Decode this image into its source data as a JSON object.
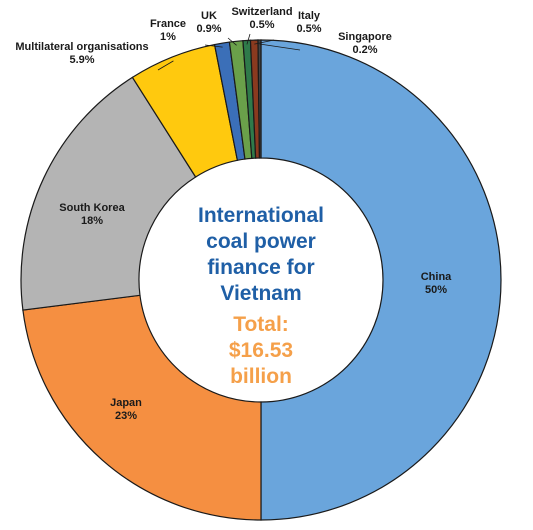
{
  "chart_data": {
    "type": "pie",
    "style": "donut",
    "center_title_lines": [
      "International",
      "coal power",
      "finance for",
      "Vietnam"
    ],
    "center_total_lines": [
      "Total:",
      "$16.53",
      "billion"
    ],
    "slices": [
      {
        "name": "China",
        "value": 50,
        "label": "50%",
        "color": "#6aa5dc"
      },
      {
        "name": "Japan",
        "value": 23,
        "label": "23%",
        "color": "#f58f41"
      },
      {
        "name": "South Korea",
        "value": 18,
        "label": "18%",
        "color": "#b4b4b4"
      },
      {
        "name": "Multilateral organisations",
        "value": 5.9,
        "label": "5.9%",
        "color": "#ffc90e"
      },
      {
        "name": "France",
        "value": 1,
        "label": "1%",
        "color": "#3b6fb8"
      },
      {
        "name": "UK",
        "value": 0.9,
        "label": "0.9%",
        "color": "#6aa04a"
      },
      {
        "name": "Switzerland",
        "value": 0.5,
        "label": "0.5%",
        "color": "#2f7a4a"
      },
      {
        "name": "Italy",
        "value": 0.5,
        "label": "0.5%",
        "color": "#8a3a1f"
      },
      {
        "name": "Singapore",
        "value": 0.2,
        "label": "0.2%",
        "color": "#444444"
      }
    ]
  }
}
